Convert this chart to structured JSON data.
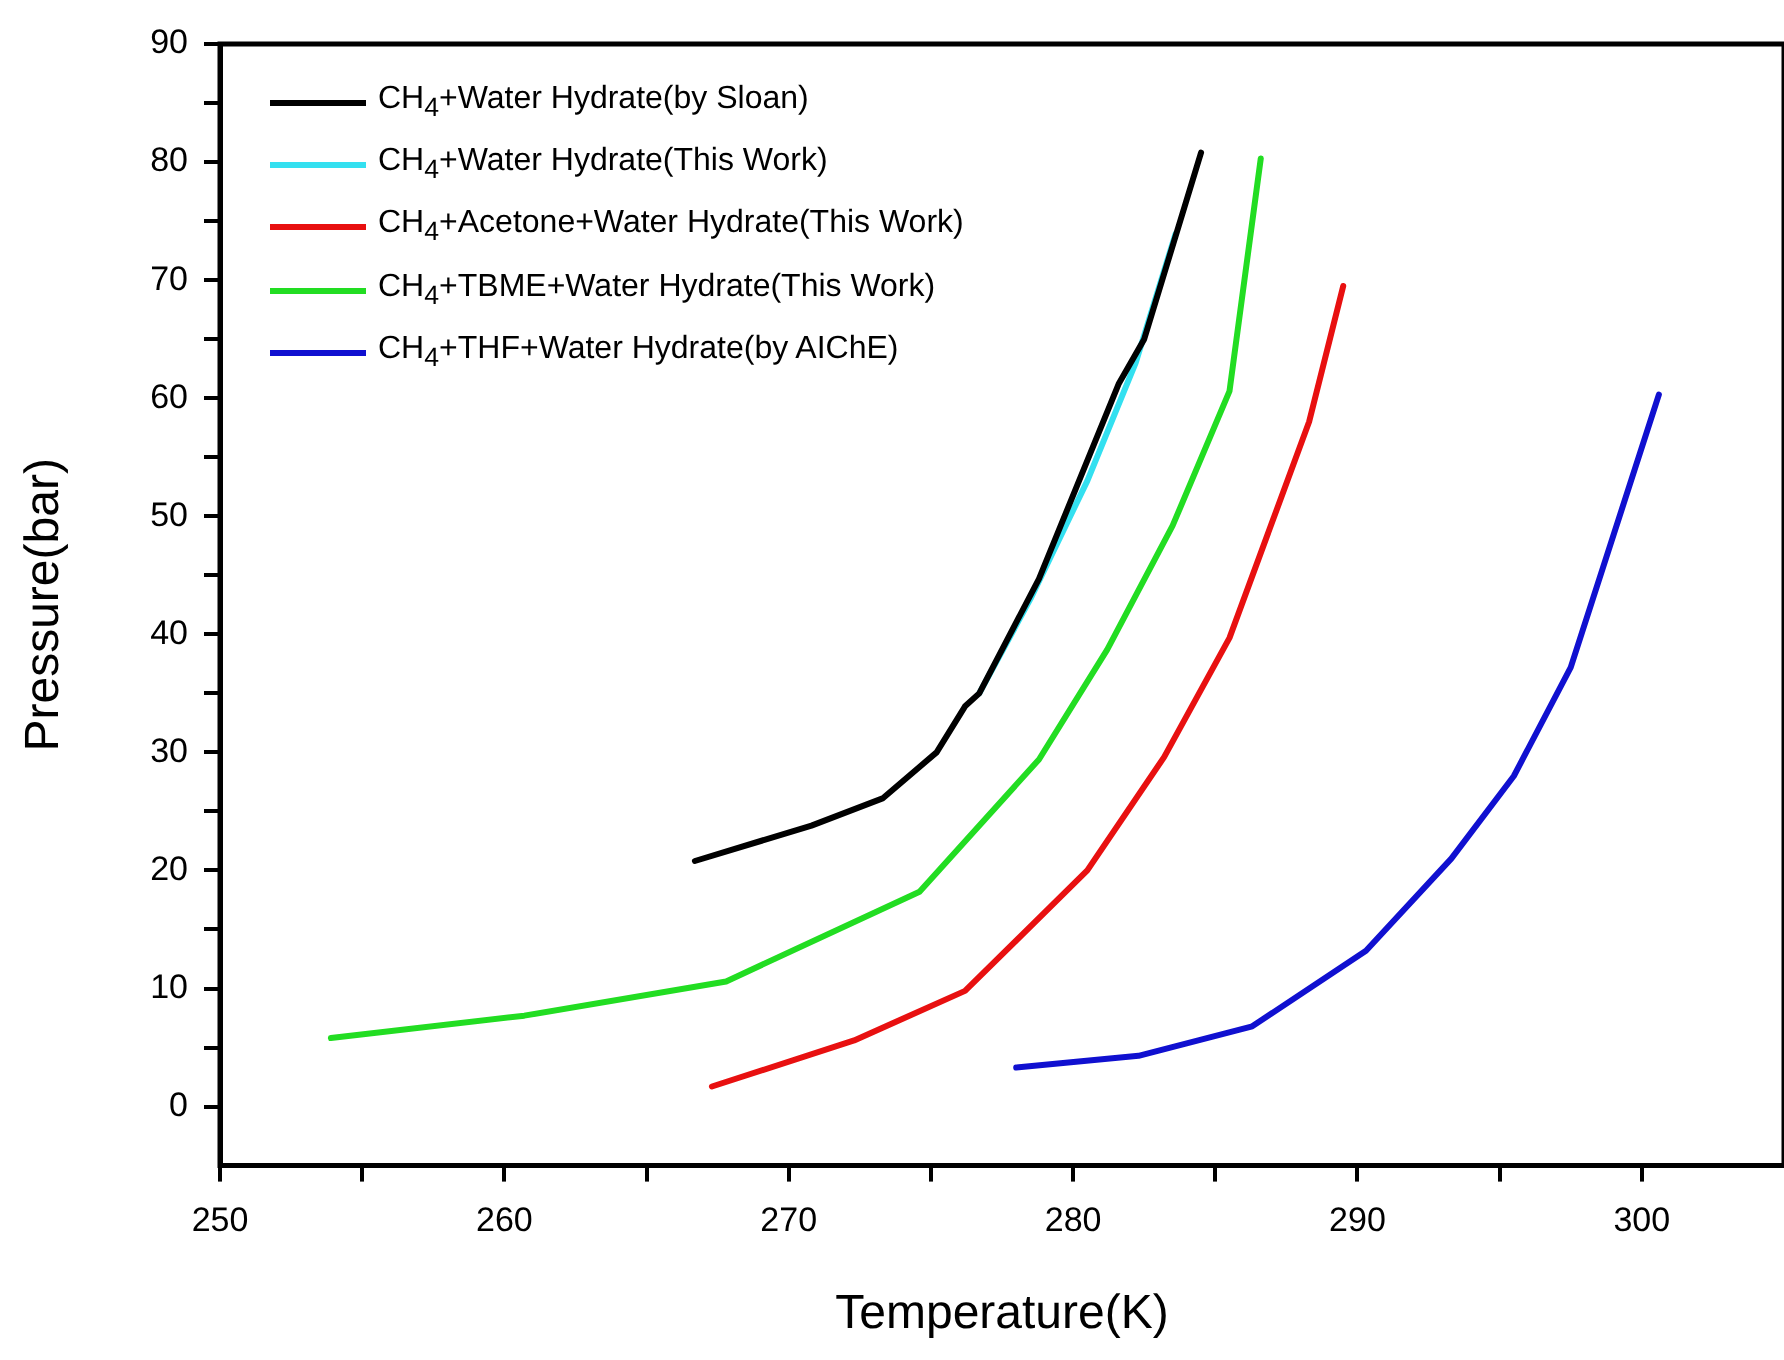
{
  "chart_data": {
    "type": "line",
    "xlabel": "Temperature(K)",
    "ylabel": "Pressure(bar)",
    "xlim": [
      250,
      305
    ],
    "ylim": [
      -5,
      90
    ],
    "xticks": [
      250,
      {
        "value": 255,
        "label": null
      },
      260,
      {
        "value": 265,
        "label": null
      },
      270,
      {
        "value": 275,
        "label": null
      },
      280,
      {
        "value": 285,
        "label": null
      },
      290,
      {
        "value": 295,
        "label": null
      },
      300
    ],
    "yticks": [
      0,
      {
        "value": 5,
        "label": null
      },
      10,
      {
        "value": 15,
        "label": null
      },
      20,
      {
        "value": 25,
        "label": null
      },
      30,
      {
        "value": 35,
        "label": null
      },
      40,
      {
        "value": 45,
        "label": null
      },
      50,
      {
        "value": 55,
        "label": null
      },
      60,
      {
        "value": 65,
        "label": null
      },
      70,
      {
        "value": 75,
        "label": null
      },
      80,
      {
        "value": 85,
        "label": null
      },
      90
    ],
    "grid": false,
    "legend": "top left",
    "marker": "none",
    "line_style": "solid",
    "series": [
      {
        "name": "CH$_{4}$+Water Hydrate(by Sloan)",
        "color": "#000000",
        "x": [
          266.7,
          270.8,
          273.3,
          275.2,
          276.2,
          276.7,
          278.8,
          281.6,
          282.5,
          284.5
        ],
        "values": [
          20.8,
          23.8,
          26.1,
          30,
          33.9,
          35,
          44.7,
          61.2,
          65,
          80.8
        ]
      },
      {
        "name": "CH$_{4}$+Water Hydrate(This Work)",
        "color": "#33e0f0",
        "x": [
          276.7,
          278.5,
          280.5,
          282.2,
          283.6
        ],
        "values": [
          35,
          43,
          53,
          63,
          73.9
        ]
      },
      {
        "name": "CH$_{4}$+Acetone+Water Hydrate(This Work)",
        "color": "#e81010",
        "x": [
          267.3,
          272.3,
          276.2,
          280.5,
          283.2,
          285.5,
          288.3,
          289.5
        ],
        "values": [
          1.7,
          5.6,
          9.8,
          20,
          29.6,
          39.7,
          58,
          69.5
        ]
      },
      {
        "name": "CH$_{4}$+TBME+Water Hydrate(This Work)",
        "color": "#22dd22",
        "x": [
          253.9,
          260.7,
          267.8,
          274.6,
          278.8,
          281.2,
          283.5,
          285.5,
          286.6
        ],
        "values": [
          5.8,
          7.7,
          10.6,
          18.2,
          29.4,
          38.7,
          49.2,
          60.6,
          80.3
        ]
      },
      {
        "name": "CH$_{4}$+THF+Water Hydrate(by AIChE)",
        "color": "#1010d0",
        "x": [
          278,
          282.3,
          286.3,
          290.3,
          293.3,
          295.5,
          297.5,
          300.6
        ],
        "values": [
          3.3,
          4.3,
          6.8,
          13.2,
          21,
          28,
          37.2,
          60.3
        ]
      }
    ]
  }
}
